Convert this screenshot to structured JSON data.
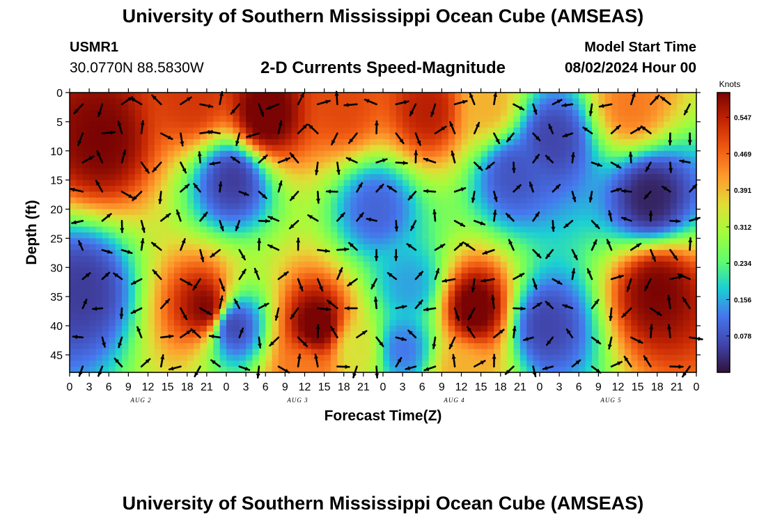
{
  "header": {
    "title": "University of Southern Mississippi Ocean Cube (AMSEAS)",
    "station_id": "USMR1",
    "station_coords": "30.0770N  88.5830W",
    "chart_title": "2-D Currents Speed-Magnitude",
    "model_start_label": "Model Start Time",
    "model_start_value": "08/02/2024 Hour 00"
  },
  "footer": {
    "title": "University of Southern Mississippi Ocean Cube (AMSEAS)"
  },
  "chart_data": {
    "type": "heatmap",
    "title": "2-D Currents Speed-Magnitude",
    "xlabel": "Forecast Time(Z)",
    "ylabel": "Depth (ft)",
    "x_tick_labels": [
      "0",
      "3",
      "6",
      "9",
      "12",
      "15",
      "18",
      "21",
      "0",
      "3",
      "6",
      "9",
      "12",
      "15",
      "18",
      "21",
      "0",
      "3",
      "6",
      "9",
      "12",
      "15",
      "18",
      "21",
      "0",
      "3",
      "6",
      "9",
      "12",
      "15",
      "18",
      "21",
      "0"
    ],
    "day_labels": [
      "AUG 2",
      "AUG 3",
      "AUG 4",
      "AUG 5"
    ],
    "xlim_hours": [
      0,
      96
    ],
    "ylim_ft": [
      0,
      48
    ],
    "y_ticks": [
      0,
      5,
      10,
      15,
      20,
      25,
      30,
      35,
      40,
      45
    ],
    "colorbar": {
      "label": "Knots",
      "ticks": [
        "0.547",
        "0.469",
        "0.391",
        "0.312",
        "0.234",
        "0.156",
        "0.078"
      ],
      "min": 0.0,
      "max": 0.6
    },
    "speed_sources": [
      {
        "t": 5,
        "d": 8,
        "v": 0.6
      },
      {
        "t": 19,
        "d": 1,
        "v": 0.52
      },
      {
        "t": 30,
        "d": 4,
        "v": 0.62
      },
      {
        "t": 42,
        "d": 2,
        "v": 0.5
      },
      {
        "t": 55,
        "d": 3,
        "v": 0.55
      },
      {
        "t": 64,
        "d": 2,
        "v": 0.4
      },
      {
        "t": 86,
        "d": 2,
        "v": 0.45
      },
      {
        "t": 44,
        "d": 44,
        "v": 0.35
      },
      {
        "t": 21,
        "d": 37,
        "v": 0.6
      },
      {
        "t": 38,
        "d": 40,
        "v": 0.62
      },
      {
        "t": 62,
        "d": 37,
        "v": 0.62
      },
      {
        "t": 90,
        "d": 34,
        "v": 0.6
      },
      {
        "t": 36,
        "d": 48,
        "v": 0.45
      },
      {
        "t": 60,
        "d": 48,
        "v": 0.4
      },
      {
        "t": 2,
        "d": 34,
        "v": 0.05
      },
      {
        "t": 25,
        "d": 15,
        "v": 0.05
      },
      {
        "t": 25,
        "d": 40,
        "v": 0.06
      },
      {
        "t": 47,
        "d": 20,
        "v": 0.1
      },
      {
        "t": 68,
        "d": 14,
        "v": 0.08
      },
      {
        "t": 74,
        "d": 8,
        "v": 0.06
      },
      {
        "t": 73,
        "d": 40,
        "v": 0.06
      },
      {
        "t": 89,
        "d": 18,
        "v": 0.02
      },
      {
        "t": 52,
        "d": 33,
        "v": 0.15
      },
      {
        "t": 51,
        "d": 44,
        "v": 0.12
      }
    ]
  }
}
